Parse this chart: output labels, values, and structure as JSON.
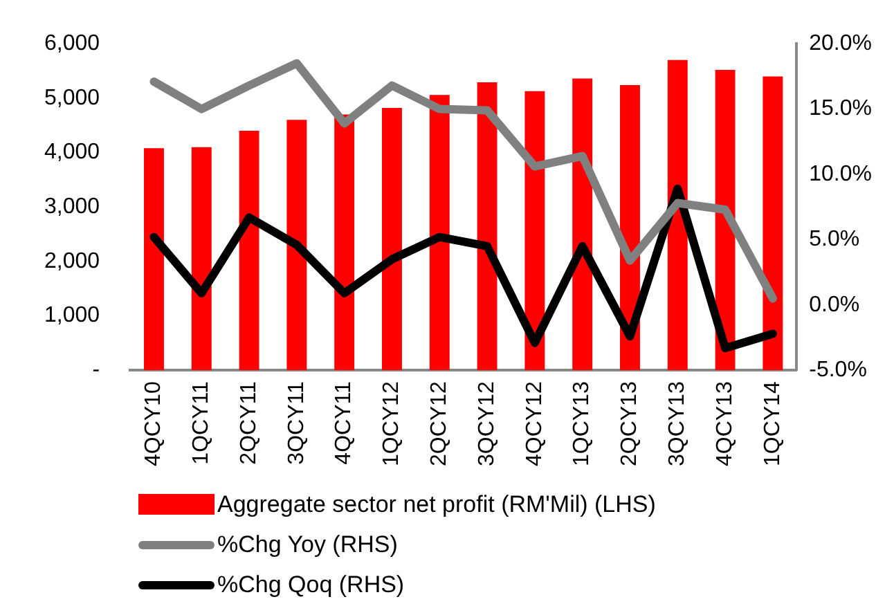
{
  "chart_data": {
    "type": "bar",
    "categories": [
      "4QCY10",
      "1QCY11",
      "2QCY11",
      "3QCY11",
      "4QCY11",
      "1QCY12",
      "2QCY12",
      "3QCY12",
      "4QCY12",
      "1QCY13",
      "2QCY13",
      "3QCY13",
      "4QCY13",
      "1QCY14"
    ],
    "series": [
      {
        "name": "Aggregate sector net profit (RM'Mil) (LHS)",
        "color": "#ff0000",
        "values": [
          4080,
          4100,
          4400,
          4600,
          4700,
          4820,
          5060,
          5290,
          5130,
          5360,
          5240,
          5700,
          5520,
          5400
        ]
      },
      {
        "name": "%Chg Yoy (RHS)",
        "type": "line",
        "axis": "y2",
        "color": "#808080",
        "values": [
          17.1,
          15.0,
          16.8,
          18.5,
          13.9,
          16.8,
          15.0,
          14.9,
          10.6,
          11.4,
          3.4,
          7.8,
          7.3,
          0.5
        ]
      },
      {
        "name": "%Chg Qoq (RHS)",
        "type": "line",
        "axis": "y2",
        "color": "#000000",
        "values": [
          5.2,
          0.9,
          6.7,
          4.6,
          0.9,
          3.5,
          5.2,
          4.5,
          -2.9,
          4.5,
          -2.4,
          8.9,
          -3.3,
          -2.2
        ]
      }
    ],
    "ylim": [
      0,
      6000
    ],
    "yticks": [
      {
        "value": 0,
        "label": "-"
      },
      {
        "value": 1000,
        "label": "1,000"
      },
      {
        "value": 2000,
        "label": "2,000"
      },
      {
        "value": 3000,
        "label": "3,000"
      },
      {
        "value": 4000,
        "label": "4,000"
      },
      {
        "value": 5000,
        "label": "5,000"
      },
      {
        "value": 6000,
        "label": "6,000"
      }
    ],
    "y2lim": [
      -5,
      20
    ],
    "y2ticks": [
      {
        "value": -5,
        "label": "-5.0%"
      },
      {
        "value": 0,
        "label": "0.0%"
      },
      {
        "value": 5,
        "label": "5.0%"
      },
      {
        "value": 10,
        "label": "10.0%"
      },
      {
        "value": 15,
        "label": "15.0%"
      },
      {
        "value": 20,
        "label": "20.0%"
      }
    ],
    "grid": false,
    "legend": "bottom",
    "marker": "none"
  }
}
